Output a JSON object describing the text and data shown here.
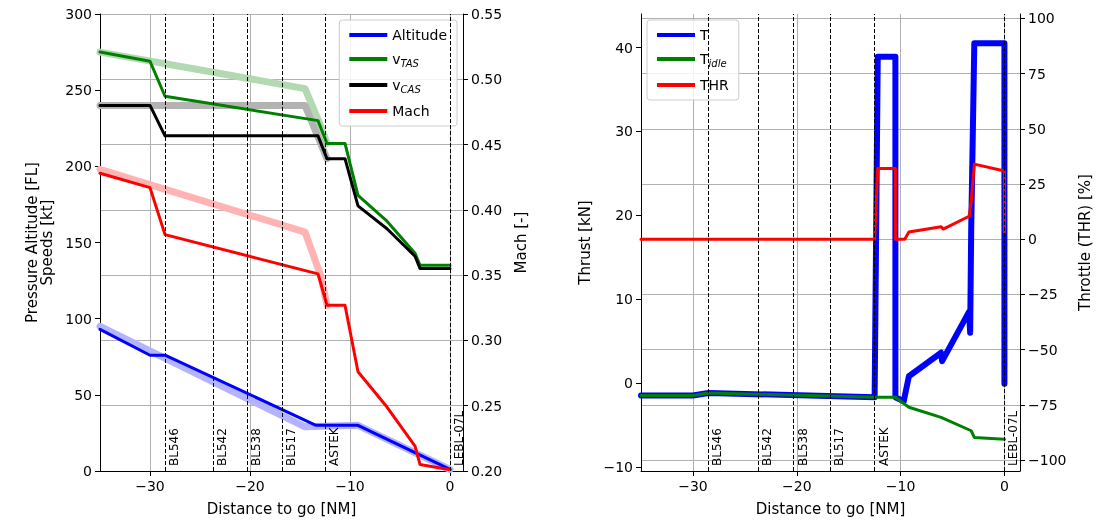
{
  "chart_data": [
    {
      "type": "line",
      "xlabel": "Distance to go [NM]",
      "ylabel": "Pressure Altitude [FL]\nSpeeds [kt]",
      "y2label": "Mach [-]",
      "xlim": [
        -35,
        1.3
      ],
      "xticks": [
        {
          "value": -30,
          "label": "−30"
        },
        {
          "value": -20,
          "label": "−20"
        },
        {
          "value": -10,
          "label": "−10"
        },
        0
      ],
      "ylim": [
        0,
        300
      ],
      "yticks": [
        0,
        50,
        100,
        150,
        200,
        250,
        300
      ],
      "y2lim": [
        0.2,
        0.55
      ],
      "y2ticks": [
        {
          "value": 0.2,
          "label": "0.20"
        },
        {
          "value": 0.25,
          "label": "0.25"
        },
        {
          "value": 0.3,
          "label": "0.30"
        },
        {
          "value": 0.35,
          "label": "0.35"
        },
        {
          "value": 0.4,
          "label": "0.40"
        },
        {
          "value": 0.45,
          "label": "0.45"
        },
        {
          "value": 0.5,
          "label": "0.50"
        },
        {
          "value": 0.55,
          "label": "0.55"
        }
      ],
      "grid": true,
      "legend": "top right",
      "ref_lines": [
        {
          "axis": "x",
          "value": -28.5,
          "label": "BL546",
          "line_style": "dashed",
          "color": "#000000"
        },
        {
          "axis": "x",
          "value": -23.7,
          "label": "BL542",
          "line_style": "dashed",
          "color": "#000000"
        },
        {
          "axis": "x",
          "value": -20.3,
          "label": "BL538",
          "line_style": "dashed",
          "color": "#000000"
        },
        {
          "axis": "x",
          "value": -16.8,
          "label": "BL517",
          "line_style": "dashed",
          "color": "#000000"
        },
        {
          "axis": "x",
          "value": -12.5,
          "label": "ASTEK",
          "line_style": "dashed",
          "color": "#000000"
        },
        {
          "axis": "x",
          "value": 0,
          "label": "LEBL-07L",
          "line_style": "dashed",
          "color": "#000000"
        }
      ],
      "series": [
        {
          "color": "#b3b3ff",
          "x": [
            -35,
            -14.5,
            -9.2,
            0
          ],
          "values": [
            95,
            29,
            30,
            1
          ]
        },
        {
          "color": "#b3d9b3",
          "x": [
            -35,
            -14.5,
            -12.9,
            -12.3
          ],
          "values": [
            275,
            251,
            226,
            215
          ]
        },
        {
          "color": "#b3b3b3",
          "x": [
            -35,
            -14.5,
            -12.3
          ],
          "values": [
            240,
            240,
            205
          ]
        },
        {
          "color": "#ffb3b3",
          "axis": "y2",
          "x": [
            -35,
            -14.5,
            -12.9,
            -12.3
          ],
          "values": [
            0.431,
            0.383,
            0.349,
            0.327
          ]
        },
        {
          "name": "Altitude",
          "color": "#0000ff",
          "x": [
            -35,
            -30,
            -28.5,
            -13.4,
            -9.2,
            0
          ],
          "values": [
            93,
            76,
            76,
            30,
            30,
            1
          ]
        },
        {
          "name": "v$_{TAS}$",
          "color": "#008000",
          "x": [
            -35,
            -30,
            -28.5,
            -13.2,
            -12.3,
            -10.5,
            -9.2,
            -6.3,
            -3.5,
            -3,
            0
          ],
          "values": [
            275,
            269,
            246,
            230,
            215,
            215,
            181,
            164,
            143,
            135,
            135
          ]
        },
        {
          "name": "v$_{CAS}$",
          "color": "#000000",
          "x": [
            -35,
            -30,
            -28.5,
            -13.2,
            -12.3,
            -10.5,
            -9.2,
            -6.3,
            -3.5,
            -3,
            0
          ],
          "values": [
            240,
            240,
            220,
            220,
            205,
            205,
            174,
            159,
            141,
            133,
            133
          ]
        },
        {
          "name": "Mach",
          "color": "#ff0000",
          "axis": "y2",
          "x": [
            -35,
            -30,
            -28.5,
            -13.2,
            -12.3,
            -10.5,
            -9.2,
            -6.3,
            -3.5,
            -3,
            0
          ],
          "values": [
            0.428,
            0.417,
            0.381,
            0.351,
            0.327,
            0.327,
            0.276,
            0.249,
            0.219,
            0.205,
            0.201
          ]
        }
      ]
    },
    {
      "type": "line",
      "xlabel": "Distance to go [NM]",
      "ylabel": "Thrust [kN]",
      "y2label": "Throttle (THR) [%]",
      "xlim": [
        -35,
        1.5
      ],
      "xticks": [
        {
          "value": -30,
          "label": "−30"
        },
        {
          "value": -20,
          "label": "−20"
        },
        {
          "value": -10,
          "label": "−10"
        },
        0
      ],
      "ylim": [
        -10.5,
        44
      ],
      "yticks": [
        {
          "value": -10,
          "label": "−10"
        },
        0,
        10,
        20,
        30,
        40
      ],
      "y2lim": [
        -105,
        102
      ],
      "y2ticks": [
        {
          "value": -100,
          "label": "−100"
        },
        {
          "value": -75,
          "label": "−75"
        },
        {
          "value": -50,
          "label": "−50"
        },
        {
          "value": -25,
          "label": "−25"
        },
        0,
        25,
        50,
        75,
        100
      ],
      "grid": true,
      "legend": "top left",
      "ref_lines": [
        {
          "axis": "x",
          "value": -28.5,
          "label": "BL546",
          "line_style": "dashed",
          "color": "#000000"
        },
        {
          "axis": "x",
          "value": -23.7,
          "label": "BL542",
          "line_style": "dashed",
          "color": "#000000"
        },
        {
          "axis": "x",
          "value": -20.3,
          "label": "BL538",
          "line_style": "dashed",
          "color": "#000000"
        },
        {
          "axis": "x",
          "value": -16.8,
          "label": "BL517",
          "line_style": "dashed",
          "color": "#000000"
        },
        {
          "axis": "x",
          "value": -12.5,
          "label": "ASTEK",
          "line_style": "dashed",
          "color": "#000000"
        },
        {
          "axis": "x",
          "value": 0,
          "label": "LEBL-07L",
          "line_style": "dashed",
          "color": "#000000"
        }
      ],
      "series": [
        {
          "name": "T",
          "color": "#0000ff",
          "x": [
            -35,
            -30,
            -28.5,
            -12.5,
            -12.2,
            -10.5,
            -10.5,
            -9.7,
            -9.2,
            -6.1,
            -6.0,
            -3.4,
            -3.3,
            -3.2,
            -2.9,
            0,
            0
          ],
          "values": [
            -1.5,
            -1.5,
            -1.2,
            -1.7,
            38.9,
            38.9,
            -1.7,
            -2.2,
            0.8,
            3.6,
            2.6,
            8.5,
            6.0,
            18.2,
            40.5,
            40.5,
            -0.1
          ]
        },
        {
          "name": "T$_{idle}$",
          "color": "#008000",
          "x": [
            -35,
            -30,
            -28.5,
            -12.5,
            -10.5,
            -9.2,
            -6.1,
            -3.2,
            -2.9,
            0
          ],
          "values": [
            -1.5,
            -1.5,
            -1.2,
            -1.7,
            -1.7,
            -2.9,
            -4.1,
            -5.7,
            -6.5,
            -6.7
          ]
        },
        {
          "name": "THR",
          "color": "#ff0000",
          "axis": "y2",
          "x": [
            -35,
            -12.5,
            -12.2,
            -10.5,
            -10.5,
            -9.6,
            -9.2,
            -6.1,
            -5.9,
            -3.4,
            -3.2,
            -2.9,
            0,
            0
          ],
          "values": [
            0,
            0,
            32,
            32,
            0,
            0,
            3.3,
            5.6,
            4.6,
            10.4,
            16.9,
            34,
            30.9,
            3.3
          ]
        }
      ]
    }
  ]
}
